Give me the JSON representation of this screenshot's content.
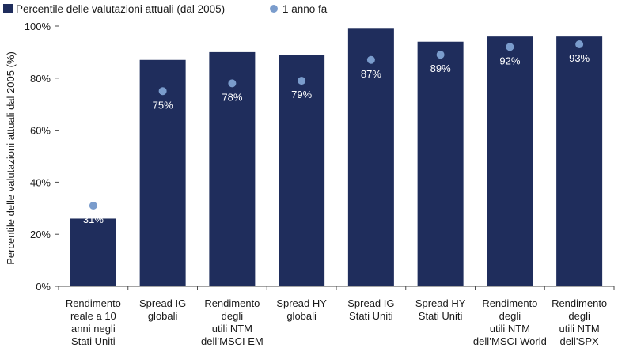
{
  "chart_data": {
    "type": "bar",
    "ylabel": "Percentile delle valutazioni attuali dal 2005 (%)",
    "ylim": [
      0,
      100
    ],
    "yticks": [
      "0%",
      "20%",
      "40%",
      "60%",
      "80%",
      "100%"
    ],
    "ytick_values": [
      0,
      20,
      40,
      60,
      80,
      100
    ],
    "legend": {
      "placement": "top-left",
      "entries": [
        {
          "name": "Percentile delle valutazioni attuali (dal 2005)",
          "marker": "square",
          "color": "#1f2d5c"
        },
        {
          "name": "1 anno fa",
          "marker": "circle",
          "color": "#7a9ccc"
        }
      ]
    },
    "categories": [
      [
        "Rendimento",
        "reale a 10",
        "anni negli",
        "Stati Uniti"
      ],
      [
        "Spread IG",
        "globali"
      ],
      [
        "Rendimento",
        "degli",
        "utili NTM",
        "dell’MSCI EM"
      ],
      [
        "Spread HY",
        "globali"
      ],
      [
        "Spread IG",
        "Stati Uniti"
      ],
      [
        "Spread HY",
        "Stati Uniti"
      ],
      [
        "Rendimento",
        "degli",
        "utili NTM",
        "dell’MSCI World"
      ],
      [
        "Rendimento",
        "degli",
        "utili NTM",
        "dell’SPX"
      ]
    ],
    "series": [
      {
        "name": "Percentile delle valutazioni attuali (dal 2005)",
        "type": "bar",
        "color": "#1f2d5c",
        "values": [
          26,
          87,
          90,
          89,
          99,
          94,
          96,
          96
        ]
      },
      {
        "name": "1 anno fa",
        "type": "scatter",
        "color": "#7a9ccc",
        "values": [
          31,
          75,
          78,
          79,
          87,
          89,
          92,
          93
        ],
        "labels": [
          "31%",
          "75%",
          "78%",
          "79%",
          "87%",
          "89%",
          "92%",
          "93%"
        ]
      }
    ]
  }
}
